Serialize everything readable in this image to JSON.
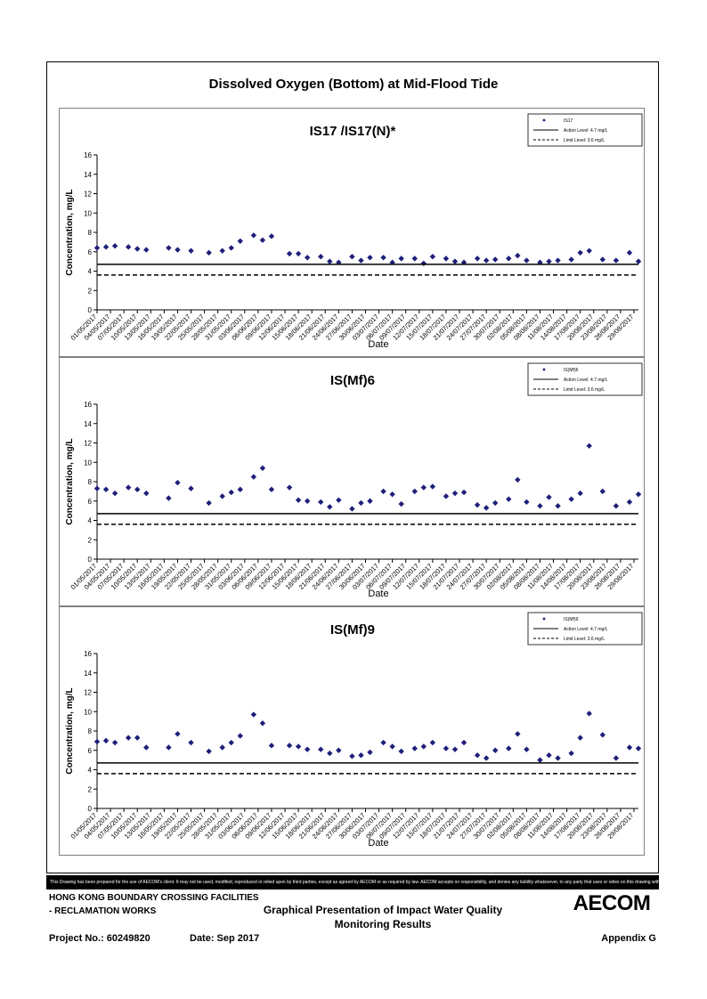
{
  "page": {
    "title": "Dissolved Oxygen (Bottom) at Mid-Flood Tide",
    "disclaimer": "This Drawing has been prepared for the use of AECOM's client. It may not be used, modified, reproduced or relied upon by third parties, except as agreed by AECOM or as required by law. AECOM accepts no responsibility, and denies any liability whatsoever, to any party that uses or relies on this drawing without AECOM's express written consent.",
    "footer": {
      "project_line1": "HONG KONG BOUNDARY CROSSING FACILITIES",
      "project_line2": "- RECLAMATION WORKS",
      "graph_title_line1": "Graphical Presentation of Impact Water Quality",
      "graph_title_line2": "Monitoring Results",
      "project_no": "Project No.: 60249820",
      "date": "Date: Sep 2017",
      "appendix": "Appendix G",
      "logo": "AECOM"
    },
    "colors": {
      "marker": "#1f1f7a",
      "line": "#000000",
      "frame": "#000000",
      "panel_border": "#808080"
    }
  },
  "chart_data": [
    {
      "type": "scatter",
      "title": "IS17 /IS17(N)*",
      "xlabel": "Date",
      "ylabel": "Concentration, mg/L",
      "ylim": [
        0,
        16
      ],
      "yticks": [
        "0",
        "2",
        "4",
        "6",
        "8",
        "10",
        "12",
        "14",
        "16"
      ],
      "xlim": [
        "01/05/2017",
        "30/08/2017"
      ],
      "xticks": [
        "01/05/2017",
        "04/05/2017",
        "07/05/2017",
        "10/05/2017",
        "13/05/2017",
        "16/05/2017",
        "19/05/2017",
        "22/05/2017",
        "25/05/2017",
        "28/05/2017",
        "31/05/2017",
        "03/06/2017",
        "06/06/2017",
        "09/06/2017",
        "12/06/2017",
        "15/06/2017",
        "18/06/2017",
        "21/06/2017",
        "24/06/2017",
        "27/06/2017",
        "30/06/2017",
        "03/07/2017",
        "06/07/2017",
        "09/07/2017",
        "12/07/2017",
        "15/07/2017",
        "18/07/2017",
        "21/07/2017",
        "24/07/2017",
        "27/07/2017",
        "30/07/2017",
        "02/08/2017",
        "05/08/2017",
        "08/08/2017",
        "11/08/2017",
        "14/08/2017",
        "17/08/2017",
        "20/08/2017",
        "23/08/2017",
        "26/08/2017",
        "29/08/2017"
      ],
      "legend_position": "top-right",
      "series": [
        {
          "name": "IS17",
          "kind": "points",
          "color": "#1f1f7a",
          "x": [
            "01/05/2017",
            "03/05/2017",
            "05/05/2017",
            "08/05/2017",
            "10/05/2017",
            "12/05/2017",
            "17/05/2017",
            "19/05/2017",
            "22/05/2017",
            "26/05/2017",
            "29/05/2017",
            "31/05/2017",
            "02/06/2017",
            "05/06/2017",
            "07/06/2017",
            "09/06/2017",
            "13/06/2017",
            "15/06/2017",
            "17/06/2017",
            "20/06/2017",
            "22/06/2017",
            "24/06/2017",
            "27/06/2017",
            "29/06/2017",
            "01/07/2017",
            "04/07/2017",
            "06/07/2017",
            "08/07/2017",
            "11/07/2017",
            "13/07/2017",
            "15/07/2017",
            "18/07/2017",
            "20/07/2017",
            "22/07/2017",
            "25/07/2017",
            "27/07/2017",
            "29/07/2017",
            "01/08/2017",
            "03/08/2017",
            "05/08/2017",
            "08/08/2017",
            "10/08/2017",
            "12/08/2017",
            "15/08/2017",
            "17/08/2017",
            "19/08/2017",
            "22/08/2017",
            "25/08/2017",
            "28/08/2017",
            "30/08/2017"
          ],
          "y": [
            6.4,
            6.5,
            6.6,
            6.5,
            6.3,
            6.2,
            6.4,
            6.2,
            6.1,
            5.9,
            6.1,
            6.4,
            7.1,
            7.7,
            7.2,
            7.6,
            5.8,
            5.8,
            5.4,
            5.5,
            5.0,
            4.9,
            5.5,
            5.1,
            5.4,
            5.4,
            4.9,
            5.3,
            5.3,
            4.8,
            5.5,
            5.3,
            5.0,
            4.9,
            5.3,
            5.1,
            5.2,
            5.3,
            5.6,
            5.1,
            4.9,
            5.0,
            5.1,
            5.2,
            5.9,
            6.1,
            5.2,
            5.1,
            5.9,
            5.0
          ]
        },
        {
          "name": "Action Level: 4.7 mg/L",
          "kind": "hline",
          "value": 4.7,
          "style": "solid"
        },
        {
          "name": "Limit Level: 3.6 mg/L",
          "kind": "hline",
          "value": 3.6,
          "style": "dashed"
        }
      ]
    },
    {
      "type": "scatter",
      "title": "IS(Mf)6",
      "xlabel": "Date",
      "ylabel": "Concentration, mg/L",
      "ylim": [
        0,
        16
      ],
      "yticks": [
        "0",
        "2",
        "4",
        "6",
        "8",
        "10",
        "12",
        "14",
        "16"
      ],
      "xlim": [
        "01/05/2017",
        "30/08/2017"
      ],
      "xticks": [
        "01/05/2017",
        "04/05/2017",
        "07/05/2017",
        "10/05/2017",
        "13/05/2017",
        "16/05/2017",
        "19/05/2017",
        "22/05/2017",
        "25/05/2017",
        "28/05/2017",
        "31/05/2017",
        "03/06/2017",
        "06/06/2017",
        "09/06/2017",
        "12/06/2017",
        "15/06/2017",
        "18/06/2017",
        "21/06/2017",
        "24/06/2017",
        "27/06/2017",
        "30/06/2017",
        "03/07/2017",
        "06/07/2017",
        "09/07/2017",
        "12/07/2017",
        "15/07/2017",
        "18/07/2017",
        "21/07/2017",
        "24/07/2017",
        "27/07/2017",
        "30/07/2017",
        "02/08/2017",
        "05/08/2017",
        "08/08/2017",
        "11/08/2017",
        "14/08/2017",
        "17/08/2017",
        "20/08/2017",
        "23/08/2017",
        "26/08/2017",
        "29/08/2017"
      ],
      "legend_position": "top-right",
      "series": [
        {
          "name": "IS(Mf)6",
          "kind": "points",
          "color": "#1f1f7a",
          "x": [
            "01/05/2017",
            "03/05/2017",
            "05/05/2017",
            "08/05/2017",
            "10/05/2017",
            "12/05/2017",
            "17/05/2017",
            "19/05/2017",
            "22/05/2017",
            "26/05/2017",
            "29/05/2017",
            "31/05/2017",
            "02/06/2017",
            "05/06/2017",
            "07/06/2017",
            "09/06/2017",
            "13/06/2017",
            "15/06/2017",
            "17/06/2017",
            "20/06/2017",
            "22/06/2017",
            "24/06/2017",
            "27/06/2017",
            "29/06/2017",
            "01/07/2017",
            "04/07/2017",
            "06/07/2017",
            "08/07/2017",
            "11/07/2017",
            "13/07/2017",
            "15/07/2017",
            "18/07/2017",
            "20/07/2017",
            "22/07/2017",
            "25/07/2017",
            "27/07/2017",
            "29/07/2017",
            "01/08/2017",
            "03/08/2017",
            "05/08/2017",
            "08/08/2017",
            "10/08/2017",
            "12/08/2017",
            "15/08/2017",
            "17/08/2017",
            "19/08/2017",
            "22/08/2017",
            "25/08/2017",
            "28/08/2017",
            "30/08/2017"
          ],
          "y": [
            7.3,
            7.2,
            6.8,
            7.4,
            7.2,
            6.8,
            6.3,
            7.9,
            7.3,
            5.8,
            6.5,
            6.9,
            7.2,
            8.5,
            9.4,
            7.2,
            7.4,
            6.1,
            6.0,
            5.9,
            5.4,
            6.1,
            5.2,
            5.8,
            6.0,
            7.0,
            6.7,
            5.7,
            7.0,
            7.4,
            7.5,
            6.5,
            6.8,
            6.9,
            5.6,
            5.3,
            5.8,
            6.2,
            8.2,
            5.9,
            5.5,
            6.4,
            5.5,
            6.2,
            6.8,
            11.7,
            7.0,
            5.5,
            5.9,
            6.7
          ]
        },
        {
          "name": "Action Level: 4.7 mg/L",
          "kind": "hline",
          "value": 4.7,
          "style": "solid"
        },
        {
          "name": "Limit Level: 3.6 mg/L",
          "kind": "hline",
          "value": 3.6,
          "style": "dashed"
        }
      ]
    },
    {
      "type": "scatter",
      "title": "IS(Mf)9",
      "xlabel": "Date",
      "ylabel": "Concentration, mg/L",
      "ylim": [
        0,
        16
      ],
      "yticks": [
        "0",
        "2",
        "4",
        "6",
        "8",
        "10",
        "12",
        "14",
        "16"
      ],
      "xlim": [
        "01/05/2017",
        "30/08/2017"
      ],
      "xticks": [
        "01/05/2017",
        "04/05/2017",
        "07/05/2017",
        "10/05/2017",
        "13/05/2017",
        "16/05/2017",
        "19/05/2017",
        "22/05/2017",
        "25/05/2017",
        "28/05/2017",
        "31/05/2017",
        "03/06/2017",
        "06/06/2017",
        "09/06/2017",
        "12/06/2017",
        "15/06/2017",
        "18/06/2017",
        "21/06/2017",
        "24/06/2017",
        "27/06/2017",
        "30/06/2017",
        "03/07/2017",
        "06/07/2017",
        "09/07/2017",
        "12/07/2017",
        "15/07/2017",
        "18/07/2017",
        "21/07/2017",
        "24/07/2017",
        "27/07/2017",
        "30/07/2017",
        "02/08/2017",
        "05/08/2017",
        "08/08/2017",
        "11/08/2017",
        "14/08/2017",
        "17/08/2017",
        "20/08/2017",
        "23/08/2017",
        "26/08/2017",
        "29/08/2017"
      ],
      "legend_position": "top-right",
      "series": [
        {
          "name": "IS(Mf)9",
          "kind": "points",
          "color": "#1f1f7a",
          "x": [
            "01/05/2017",
            "03/05/2017",
            "05/05/2017",
            "08/05/2017",
            "10/05/2017",
            "12/05/2017",
            "17/05/2017",
            "19/05/2017",
            "22/05/2017",
            "26/05/2017",
            "29/05/2017",
            "31/05/2017",
            "02/06/2017",
            "05/06/2017",
            "07/06/2017",
            "09/06/2017",
            "13/06/2017",
            "15/06/2017",
            "17/06/2017",
            "20/06/2017",
            "22/06/2017",
            "24/06/2017",
            "27/06/2017",
            "29/06/2017",
            "01/07/2017",
            "04/07/2017",
            "06/07/2017",
            "08/07/2017",
            "11/07/2017",
            "13/07/2017",
            "15/07/2017",
            "18/07/2017",
            "20/07/2017",
            "22/07/2017",
            "25/07/2017",
            "27/07/2017",
            "29/07/2017",
            "01/08/2017",
            "03/08/2017",
            "05/08/2017",
            "08/08/2017",
            "10/08/2017",
            "12/08/2017",
            "15/08/2017",
            "17/08/2017",
            "19/08/2017",
            "22/08/2017",
            "25/08/2017",
            "28/08/2017",
            "30/08/2017"
          ],
          "y": [
            6.9,
            7.0,
            6.8,
            7.3,
            7.3,
            6.3,
            6.3,
            7.7,
            6.8,
            5.9,
            6.3,
            6.8,
            7.5,
            9.7,
            8.8,
            6.5,
            6.5,
            6.4,
            6.1,
            6.1,
            5.7,
            6.0,
            5.4,
            5.5,
            5.8,
            6.8,
            6.4,
            5.9,
            6.2,
            6.4,
            6.8,
            6.2,
            6.1,
            6.8,
            5.5,
            5.2,
            6.0,
            6.2,
            7.7,
            6.1,
            5.0,
            5.5,
            5.2,
            5.7,
            7.3,
            9.8,
            7.6,
            5.2,
            6.3,
            6.2
          ]
        },
        {
          "name": "Action Level: 4.7 mg/L",
          "kind": "hline",
          "value": 4.7,
          "style": "solid"
        },
        {
          "name": "Limit Level: 3.6 mg/L",
          "kind": "hline",
          "value": 3.6,
          "style": "dashed"
        }
      ]
    }
  ]
}
